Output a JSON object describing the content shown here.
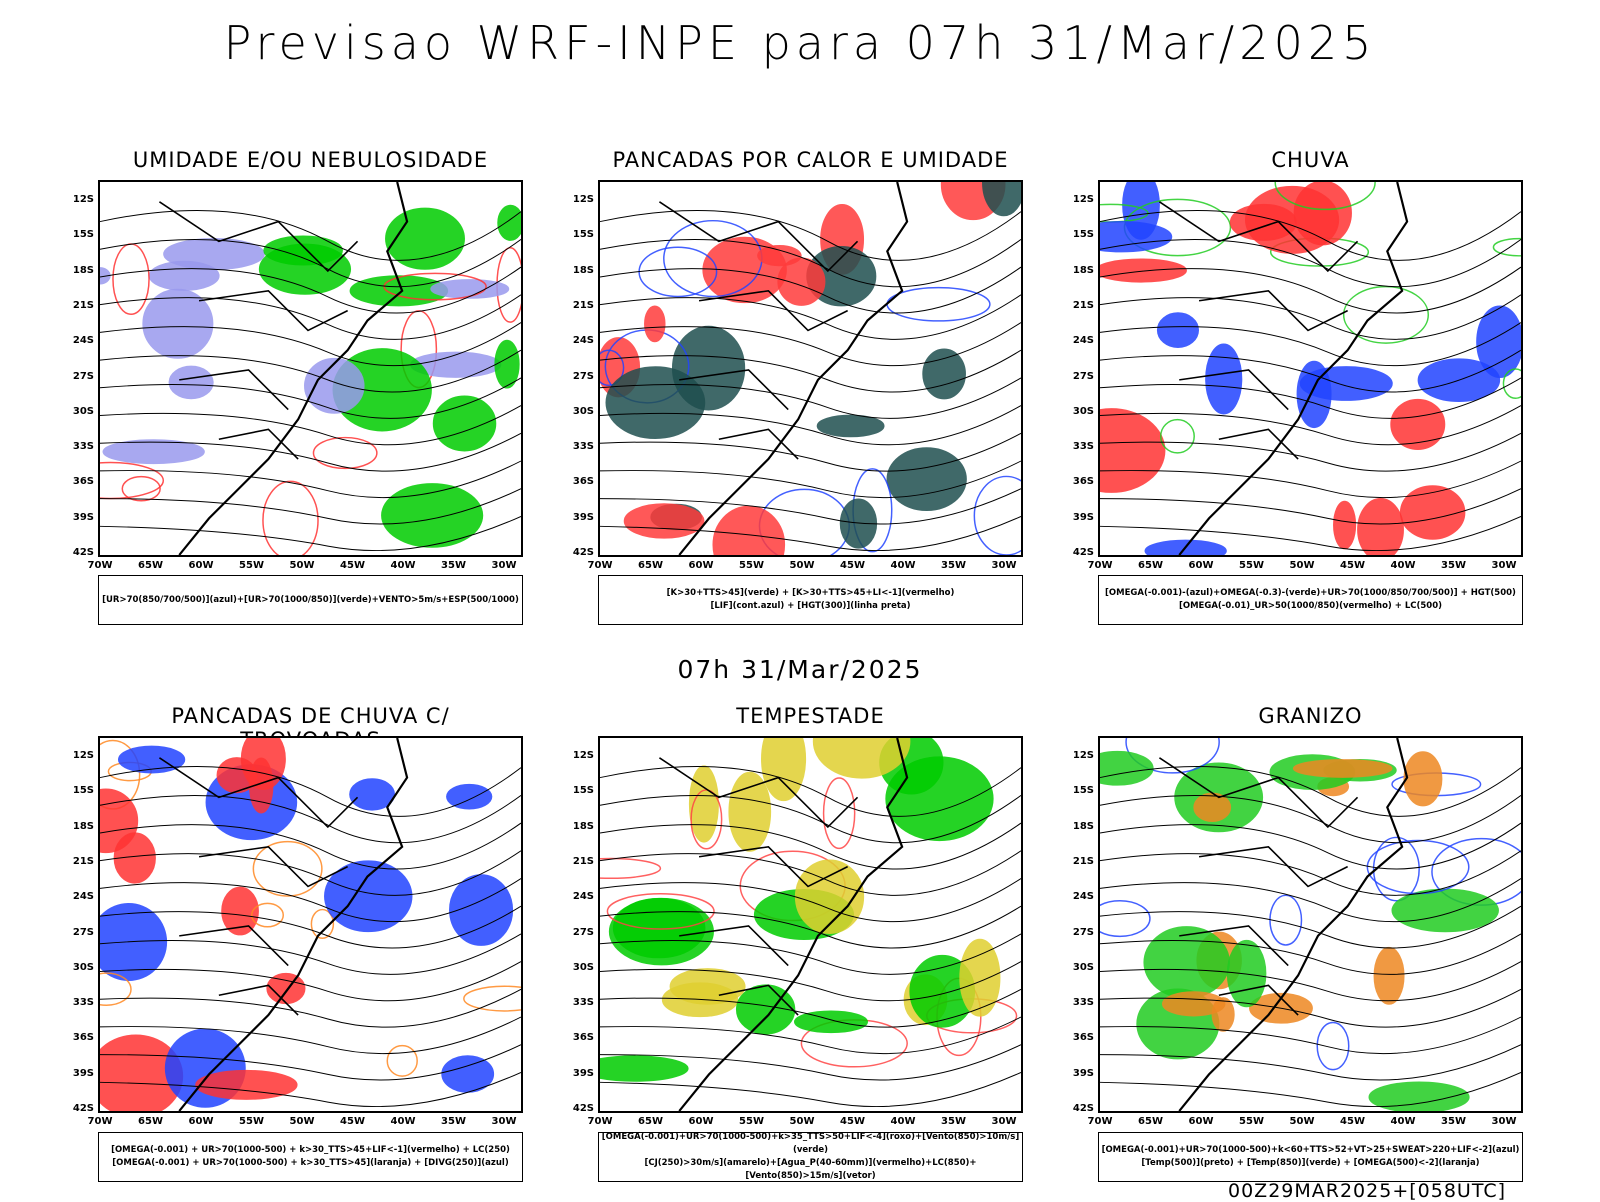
{
  "title": "Previsao WRF-INPE  para 07h 31/Mar/2025",
  "subtitle": "07h 31/Mar/2025",
  "footer": "00Z29MAR2025+[058UTC]",
  "lat_labels": [
    "12S",
    "15S",
    "18S",
    "21S",
    "24S",
    "27S",
    "30S",
    "33S",
    "36S",
    "39S",
    "42S"
  ],
  "lon_labels": [
    "70W",
    "65W",
    "60W",
    "55W",
    "50W",
    "45W",
    "40W",
    "35W",
    "30W"
  ],
  "panels": [
    {
      "title": "UMIDADE E/OU NEBULOSIDADE",
      "legend": [
        "[UR>70(850/700/500)](azul)+[UR>70(1000/850)](verde)+VENTO>5m/s+ESP(500/1000)"
      ],
      "colors": [
        "#9999ee",
        "#00cc00",
        "#ff3333"
      ]
    },
    {
      "title": "PANCADAS POR CALOR E UMIDADE",
      "legend": [
        "[K>30+TTS>45](verde) + [K>30+TTS>45+LI<-1](vermelho)",
        "[LIF](cont.azul) + [HGT(300)](linha preta)"
      ],
      "colors": [
        "#ff3b3b",
        "#1f4f4f",
        "#2244ff"
      ]
    },
    {
      "title": "CHUVA",
      "legend": [
        "[OMEGA(-0.001)-(azul)+OMEGA(-0.3)-(verde)+UR>70(1000/850/700/500)] + HGT(500)",
        "[OMEGA(-0.01)_UR>50(1000/850)(vermelho) + LC(500)"
      ],
      "colors": [
        "#ff3333",
        "#2244ff",
        "#22cc22"
      ]
    },
    {
      "title": "PANCADAS DE CHUVA C/ TROVOADAS",
      "legend": [
        "[OMEGA(-0.001) + UR>70(1000-500) + k>30_TTS>45+LIF<-1](vermelho) + LC(250)",
        "[OMEGA(-0.001) + UR>70(1000-500) + k>30_TTS>45](laranja) + [DIVG(250)](azul)"
      ],
      "colors": [
        "#ff3333",
        "#2244ff",
        "#ff8822"
      ]
    },
    {
      "title": "TEMPESTADE",
      "legend": [
        "[OMEGA(-0.001)+UR>70(1000-500)+k>35_TTS>50+LIF<-4](roxo)+[Vento(850)>10m/s](verde)",
        "[CJ(250)>30m/s](amarelo)+[Agua_P(40-60mm)](vermelho)+LC(850)+[Vento(850)>15m/s](vetor)"
      ],
      "colors": [
        "#00cc00",
        "#e0d030",
        "#ff4444"
      ]
    },
    {
      "title": "GRANIZO",
      "legend": [
        "[OMEGA(-0.001)+UR>70(1000-500)+k<60+TTS>52+VT>25+SWEAT>220+LIF<-2](azul)",
        "[Temp(500)](preto) + [Temp(850)](verde) + [OMEGA(500)<-2](laranja)"
      ],
      "colors": [
        "#22cc22",
        "#ee8822",
        "#2244ff"
      ]
    }
  ]
}
